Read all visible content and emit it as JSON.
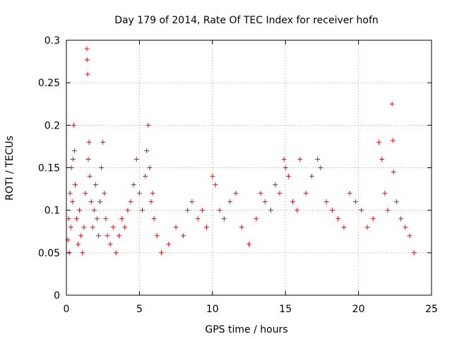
{
  "chart_data": {
    "type": "scatter",
    "title": "Day 179 of 2014, Rate Of TEC Index for receiver hofn",
    "xlabel": "GPS time / hours",
    "ylabel": "ROTI / TECUs",
    "xlim": [
      0,
      25
    ],
    "ylim": [
      0,
      0.3
    ],
    "x_ticks": [
      0,
      5,
      10,
      15,
      20,
      25
    ],
    "x_tick_labels": [
      "0",
      "5",
      "10",
      "15",
      "20",
      "25"
    ],
    "y_ticks": [
      0,
      0.05,
      0.1,
      0.15,
      0.2,
      0.25,
      0.3
    ],
    "y_tick_labels": [
      "0",
      "0.05",
      "0.1",
      "0.15",
      "0.2",
      "0.25",
      "0.3"
    ],
    "grid": true,
    "marker": "+",
    "series_color": "#ff0000",
    "series": [
      {
        "name": "ROTI",
        "points": [
          [
            0.1,
            0.065
          ],
          [
            0.15,
            0.09
          ],
          [
            0.2,
            0.05
          ],
          [
            0.25,
            0.12
          ],
          [
            0.3,
            0.08
          ],
          [
            0.35,
            0.15
          ],
          [
            0.4,
            0.11
          ],
          [
            0.45,
            0.16
          ],
          [
            0.5,
            0.2
          ],
          [
            0.55,
            0.17
          ],
          [
            0.6,
            0.13
          ],
          [
            0.7,
            0.09
          ],
          [
            0.8,
            0.06
          ],
          [
            0.9,
            0.1
          ],
          [
            1.0,
            0.07
          ],
          [
            1.1,
            0.05
          ],
          [
            1.2,
            0.08
          ],
          [
            1.3,
            0.12
          ],
          [
            1.4,
            0.29
          ],
          [
            1.42,
            0.277
          ],
          [
            1.45,
            0.26
          ],
          [
            1.5,
            0.16
          ],
          [
            1.55,
            0.18
          ],
          [
            1.6,
            0.14
          ],
          [
            1.7,
            0.11
          ],
          [
            1.8,
            0.08
          ],
          [
            1.9,
            0.1
          ],
          [
            2.0,
            0.13
          ],
          [
            2.1,
            0.09
          ],
          [
            2.2,
            0.07
          ],
          [
            2.3,
            0.11
          ],
          [
            2.4,
            0.15
          ],
          [
            2.5,
            0.18
          ],
          [
            2.6,
            0.12
          ],
          [
            2.7,
            0.09
          ],
          [
            2.8,
            0.07
          ],
          [
            3.0,
            0.06
          ],
          [
            3.2,
            0.08
          ],
          [
            3.4,
            0.05
          ],
          [
            3.6,
            0.07
          ],
          [
            3.8,
            0.09
          ],
          [
            4.0,
            0.08
          ],
          [
            4.2,
            0.1
          ],
          [
            4.4,
            0.11
          ],
          [
            4.6,
            0.13
          ],
          [
            4.8,
            0.16
          ],
          [
            5.0,
            0.12
          ],
          [
            5.2,
            0.1
          ],
          [
            5.4,
            0.14
          ],
          [
            5.5,
            0.17
          ],
          [
            5.6,
            0.2
          ],
          [
            5.7,
            0.15
          ],
          [
            5.8,
            0.11
          ],
          [
            5.9,
            0.12
          ],
          [
            6.0,
            0.09
          ],
          [
            6.2,
            0.07
          ],
          [
            6.5,
            0.05
          ],
          [
            7.0,
            0.06
          ],
          [
            7.5,
            0.08
          ],
          [
            8.0,
            0.07
          ],
          [
            8.3,
            0.1
          ],
          [
            8.6,
            0.11
          ],
          [
            9.0,
            0.09
          ],
          [
            9.3,
            0.1
          ],
          [
            9.6,
            0.08
          ],
          [
            10.0,
            0.14
          ],
          [
            10.2,
            0.13
          ],
          [
            10.5,
            0.1
          ],
          [
            10.8,
            0.09
          ],
          [
            11.2,
            0.11
          ],
          [
            11.6,
            0.12
          ],
          [
            12.0,
            0.08
          ],
          [
            12.5,
            0.06
          ],
          [
            13.0,
            0.09
          ],
          [
            13.3,
            0.12
          ],
          [
            13.6,
            0.11
          ],
          [
            14.0,
            0.1
          ],
          [
            14.3,
            0.13
          ],
          [
            14.6,
            0.12
          ],
          [
            14.9,
            0.16
          ],
          [
            15.0,
            0.15
          ],
          [
            15.2,
            0.14
          ],
          [
            15.5,
            0.11
          ],
          [
            15.8,
            0.1
          ],
          [
            16.0,
            0.16
          ],
          [
            16.4,
            0.12
          ],
          [
            16.8,
            0.14
          ],
          [
            17.2,
            0.16
          ],
          [
            17.4,
            0.15
          ],
          [
            17.8,
            0.11
          ],
          [
            18.2,
            0.1
          ],
          [
            18.6,
            0.09
          ],
          [
            19.0,
            0.08
          ],
          [
            19.4,
            0.12
          ],
          [
            19.8,
            0.11
          ],
          [
            20.2,
            0.1
          ],
          [
            20.6,
            0.08
          ],
          [
            21.0,
            0.09
          ],
          [
            21.4,
            0.18
          ],
          [
            21.6,
            0.16
          ],
          [
            21.8,
            0.12
          ],
          [
            22.0,
            0.1
          ],
          [
            22.3,
            0.225
          ],
          [
            22.35,
            0.182
          ],
          [
            22.4,
            0.145
          ],
          [
            22.6,
            0.11
          ],
          [
            22.9,
            0.09
          ],
          [
            23.2,
            0.08
          ],
          [
            23.5,
            0.07
          ],
          [
            23.8,
            0.05
          ]
        ]
      }
    ]
  }
}
